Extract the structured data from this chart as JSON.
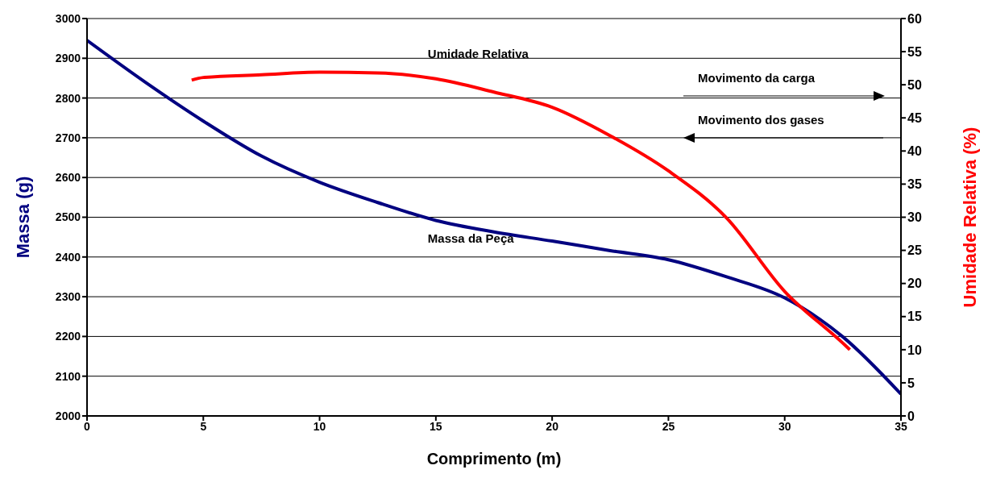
{
  "chart_data": {
    "type": "line",
    "xlabel": "Comprimento (m)",
    "ylabel": "Massa (g)",
    "y2label": "Umidade Relativa (%)",
    "xlim": [
      0,
      35
    ],
    "xticks": [
      0,
      5,
      10,
      15,
      20,
      25,
      30,
      35
    ],
    "ylim": [
      2000,
      3000
    ],
    "yticks": [
      2000,
      2100,
      2200,
      2300,
      2400,
      2500,
      2600,
      2700,
      2800,
      2900,
      3000
    ],
    "y2lim": [
      0,
      60
    ],
    "y2ticks": [
      0,
      5,
      10,
      15,
      20,
      25,
      30,
      35,
      40,
      45,
      50,
      55,
      60
    ],
    "grid": "y",
    "legend": false,
    "marker": "none",
    "line_style": "solid",
    "series": [
      {
        "name": "Massa da Peça",
        "color": "#000080",
        "x": [
          0,
          2.5,
          5,
          7.5,
          10,
          12.5,
          15,
          17.5,
          20,
          22.5,
          25,
          27.5,
          30,
          32.5,
          35
        ],
        "values": [
          2945,
          2840,
          2742,
          2654,
          2588,
          2537,
          2492,
          2463,
          2440,
          2416,
          2393,
          2350,
          2297,
          2199,
          2055
        ]
      },
      {
        "name": "Umidade Relativa",
        "color": "#ff0000",
        "axis": "y2",
        "x": [
          4.5,
          5,
          7.5,
          10,
          12.5,
          15,
          17.5,
          20,
          22.5,
          25,
          27.5,
          30,
          32.5,
          32.8
        ],
        "values": [
          50.7,
          51.1,
          51.5,
          51.9,
          51.8,
          50.9,
          48.9,
          46.6,
          42.3,
          37,
          29.9,
          18.8,
          11,
          10
        ]
      }
    ],
    "annotations": [
      "Movimento da carga",
      "Movimento dos gases"
    ]
  }
}
